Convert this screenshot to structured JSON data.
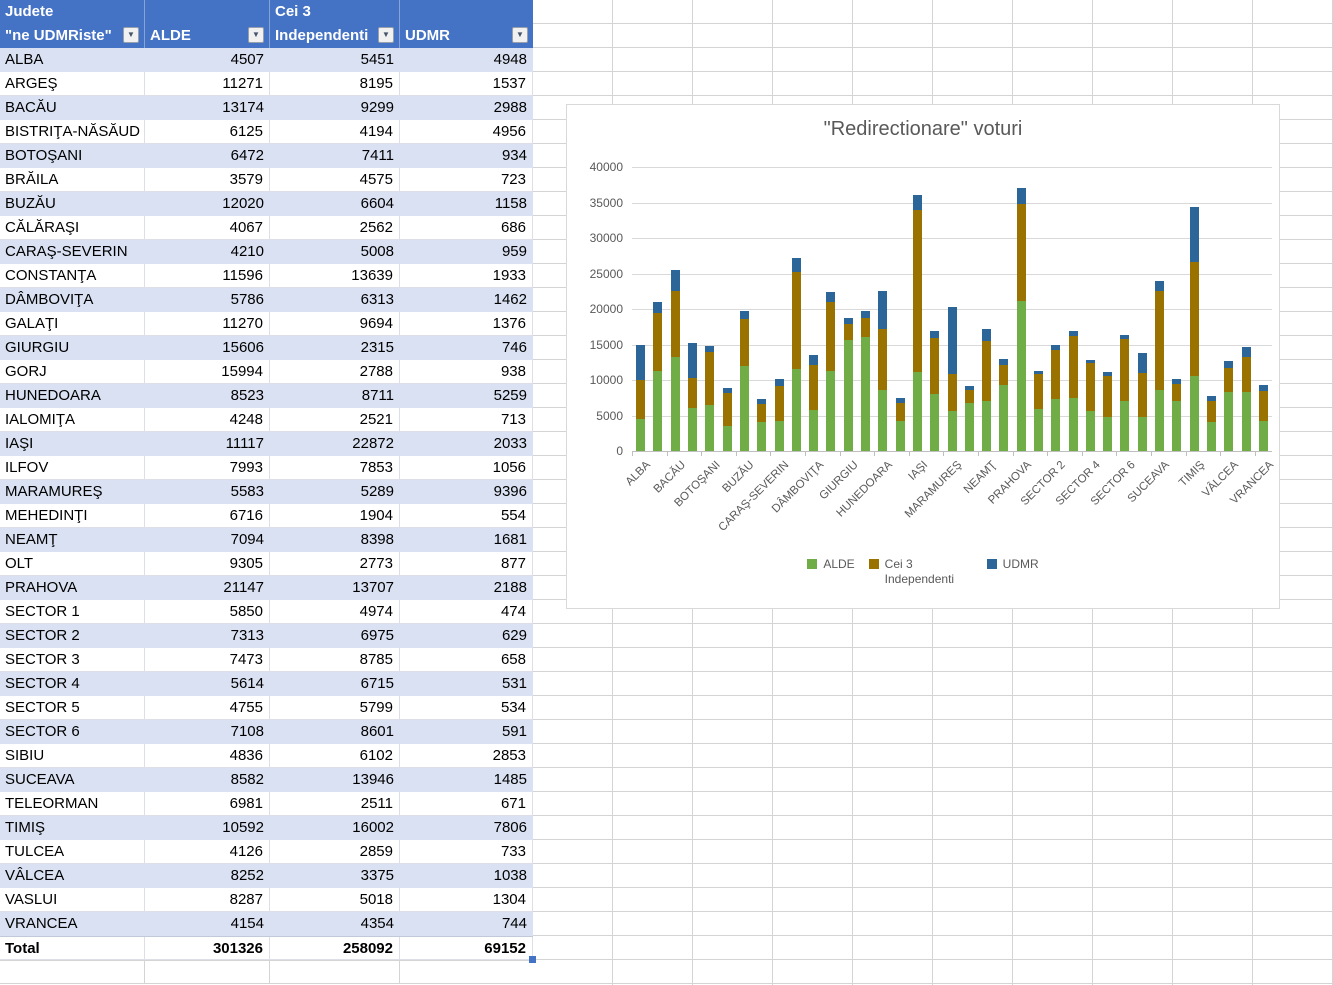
{
  "colors": {
    "table_header_bg": "#4472C4",
    "banded_row_bg": "#D9E1F2",
    "sheet_gridline": "#d4d4d4",
    "chart_gridline": "#D9D9D9",
    "alde_green": "#70AD47",
    "cei3_gold": "#9A7200",
    "udmr_blue": "#2C6598"
  },
  "table": {
    "header": {
      "judete_line1": "Judete",
      "judete_line2": "\"ne UDMRiste\"",
      "alde": "ALDE",
      "cei3_line1": "Cei 3",
      "cei3_line2": "Independenti",
      "udmr": "UDMR"
    },
    "total": {
      "label": "Total",
      "alde": "301326",
      "independenti": "258092",
      "udmr": "69152"
    }
  },
  "chart_data": {
    "type": "bar",
    "stacked": true,
    "title": "\"Redirectionare\" voturi",
    "categories": [
      "ALBA",
      "ARGEŞ",
      "BACĂU",
      "BISTRIŢA-NĂSĂUD",
      "BOTOŞANI",
      "BRĂILA",
      "BUZĂU",
      "CĂLĂRAŞI",
      "CARAŞ-SEVERIN",
      "CONSTANŢA",
      "DÂMBOVIŢA",
      "GALAŢI",
      "GIURGIU",
      "GORJ",
      "HUNEDOARA",
      "IALOMIŢA",
      "IAŞI",
      "ILFOV",
      "MARAMUREŞ",
      "MEHEDINŢI",
      "NEAMŢ",
      "OLT",
      "PRAHOVA",
      "SECTOR 1",
      "SECTOR 2",
      "SECTOR 3",
      "SECTOR 4",
      "SECTOR 5",
      "SECTOR 6",
      "SIBIU",
      "SUCEAVA",
      "TELEORMAN",
      "TIMIŞ",
      "TULCEA",
      "VÂLCEA",
      "VASLUI",
      "VRANCEA"
    ],
    "series": [
      {
        "name": "ALDE",
        "color": "#70AD47",
        "values": [
          4507,
          11271,
          13174,
          6125,
          6472,
          3579,
          12020,
          4067,
          4210,
          11596,
          5786,
          11270,
          15606,
          15994,
          8523,
          4248,
          11117,
          7993,
          5583,
          6716,
          7094,
          9305,
          21147,
          5850,
          7313,
          7473,
          5614,
          4755,
          7108,
          4836,
          8582,
          6981,
          10592,
          4126,
          8252,
          8287,
          4154
        ]
      },
      {
        "name": "Cei 3 Independenti",
        "color": "#9A7200",
        "values": [
          5451,
          8195,
          9299,
          4194,
          7411,
          4575,
          6604,
          2562,
          5008,
          13639,
          6313,
          9694,
          2315,
          2788,
          8711,
          2521,
          22872,
          7853,
          5289,
          1904,
          8398,
          2773,
          13707,
          4974,
          6975,
          8785,
          6715,
          5799,
          8601,
          6102,
          13946,
          2511,
          16002,
          2859,
          3375,
          5018,
          4354
        ]
      },
      {
        "name": "UDMR",
        "color": "#2C6598",
        "values": [
          4948,
          1537,
          2988,
          4956,
          934,
          723,
          1158,
          686,
          959,
          1933,
          1462,
          1376,
          746,
          938,
          5259,
          713,
          2033,
          1056,
          9396,
          554,
          1681,
          877,
          2188,
          474,
          629,
          658,
          531,
          534,
          591,
          2853,
          1485,
          671,
          7806,
          733,
          1038,
          1304,
          744
        ]
      }
    ],
    "ylim": [
      0,
      40000
    ],
    "ytick_step": 5000,
    "x_label_every": 2,
    "grid": true,
    "legend_position": "bottom"
  }
}
